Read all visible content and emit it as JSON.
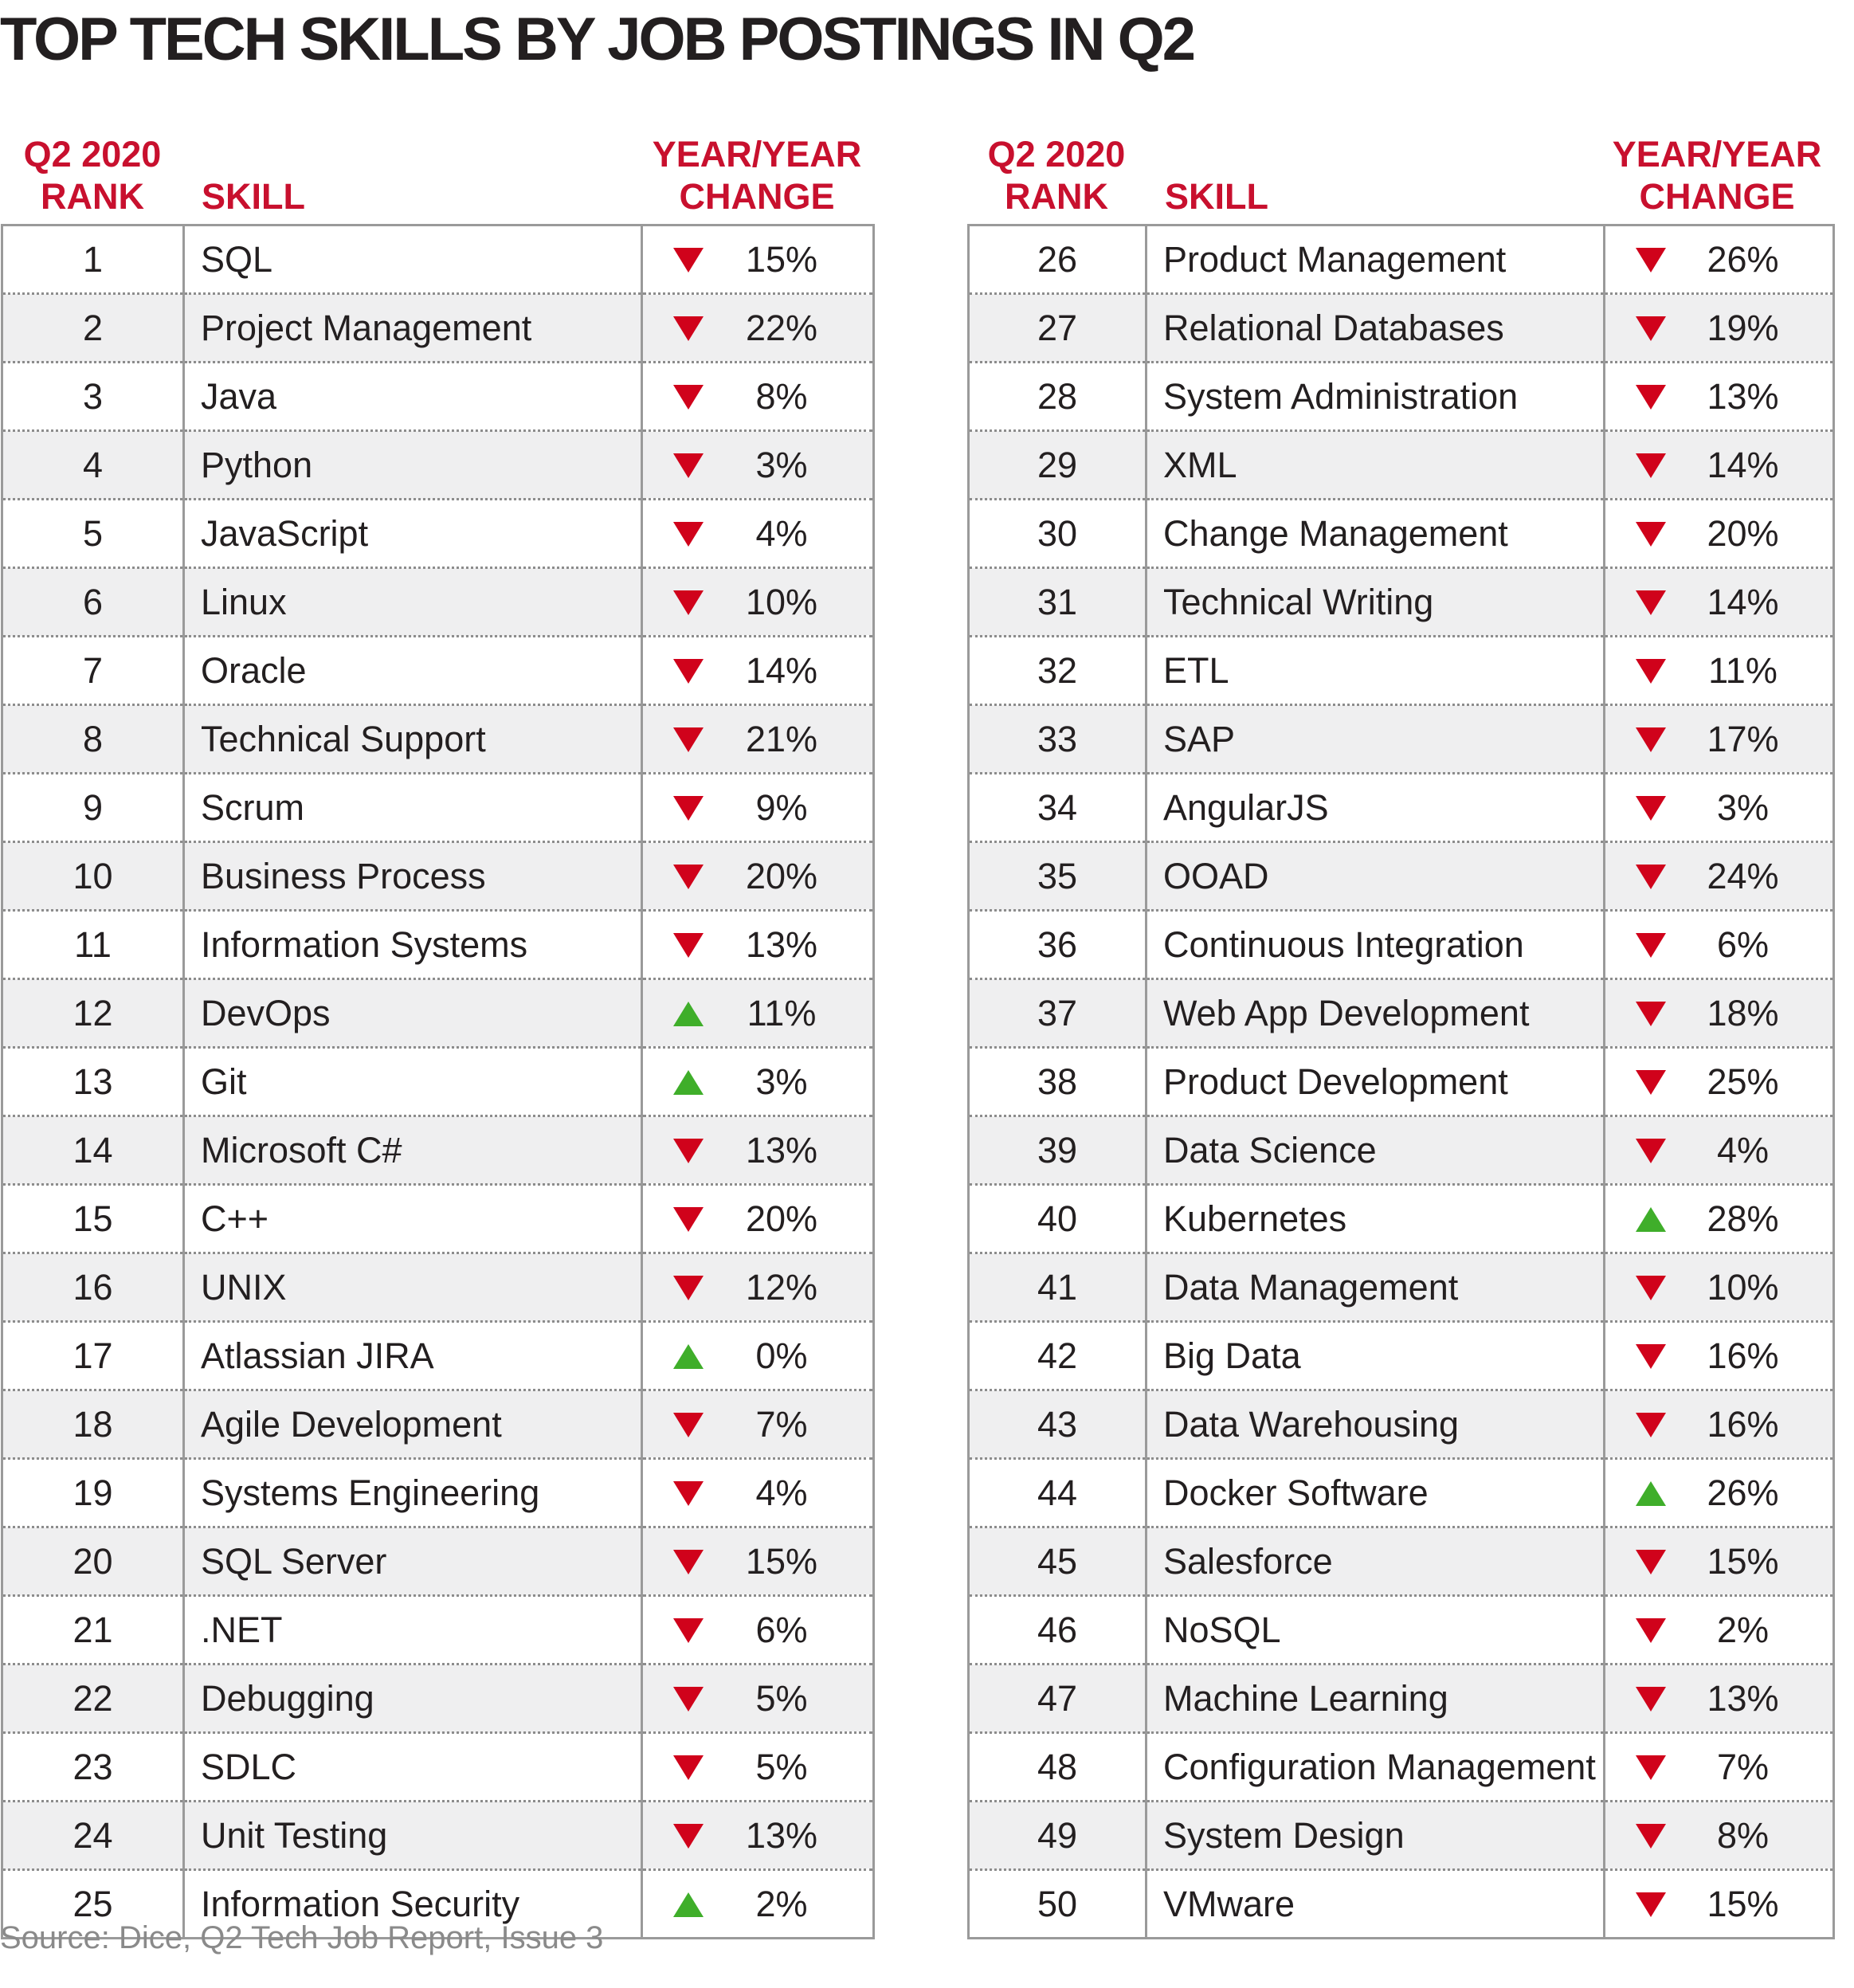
{
  "title": "TOP TECH SKILLS BY JOB POSTINGS IN Q2",
  "headers": {
    "rank_line1": "Q2 2020",
    "rank_line2": "RANK",
    "skill": "SKILL",
    "change_line1": "YEAR/YEAR",
    "change_line2": "CHANGE"
  },
  "source": "Source: Dice, Q2 Tech Job Report, Issue 3",
  "colors": {
    "accent_red": "#c8102e",
    "down_arrow": "#d0021b",
    "up_arrow": "#3fae2a",
    "zebra": "#efeff0"
  },
  "chart_data": {
    "type": "table",
    "columns": [
      "Q2 2020 RANK",
      "SKILL",
      "YEAR/YEAR CHANGE"
    ],
    "rows": [
      {
        "rank": "1",
        "skill": "SQL",
        "direction": "down",
        "change": "15%"
      },
      {
        "rank": "2",
        "skill": "Project Management",
        "direction": "down",
        "change": "22%"
      },
      {
        "rank": "3",
        "skill": "Java",
        "direction": "down",
        "change": "8%"
      },
      {
        "rank": "4",
        "skill": "Python",
        "direction": "down",
        "change": "3%"
      },
      {
        "rank": "5",
        "skill": "JavaScript",
        "direction": "down",
        "change": "4%"
      },
      {
        "rank": "6",
        "skill": "Linux",
        "direction": "down",
        "change": "10%"
      },
      {
        "rank": "7",
        "skill": "Oracle",
        "direction": "down",
        "change": "14%"
      },
      {
        "rank": "8",
        "skill": "Technical Support",
        "direction": "down",
        "change": "21%"
      },
      {
        "rank": "9",
        "skill": "Scrum",
        "direction": "down",
        "change": "9%"
      },
      {
        "rank": "10",
        "skill": "Business Process",
        "direction": "down",
        "change": "20%"
      },
      {
        "rank": "11",
        "skill": "Information Systems",
        "direction": "down",
        "change": "13%"
      },
      {
        "rank": "12",
        "skill": "DevOps",
        "direction": "up",
        "change": "11%"
      },
      {
        "rank": "13",
        "skill": "Git",
        "direction": "up",
        "change": "3%"
      },
      {
        "rank": "14",
        "skill": "Microsoft C#",
        "direction": "down",
        "change": "13%"
      },
      {
        "rank": "15",
        "skill": "C++",
        "direction": "down",
        "change": "20%"
      },
      {
        "rank": "16",
        "skill": "UNIX",
        "direction": "down",
        "change": "12%"
      },
      {
        "rank": "17",
        "skill": "Atlassian JIRA",
        "direction": "up",
        "change": "0%"
      },
      {
        "rank": "18",
        "skill": "Agile Development",
        "direction": "down",
        "change": "7%"
      },
      {
        "rank": "19",
        "skill": "Systems Engineering",
        "direction": "down",
        "change": "4%"
      },
      {
        "rank": "20",
        "skill": "SQL Server",
        "direction": "down",
        "change": "15%"
      },
      {
        "rank": "21",
        "skill": ".NET",
        "direction": "down",
        "change": "6%"
      },
      {
        "rank": "22",
        "skill": "Debugging",
        "direction": "down",
        "change": "5%"
      },
      {
        "rank": "23",
        "skill": "SDLC",
        "direction": "down",
        "change": "5%"
      },
      {
        "rank": "24",
        "skill": "Unit Testing",
        "direction": "down",
        "change": "13%"
      },
      {
        "rank": "25",
        "skill": "Information Security",
        "direction": "up",
        "change": "2%"
      },
      {
        "rank": "26",
        "skill": "Product Management",
        "direction": "down",
        "change": "26%"
      },
      {
        "rank": "27",
        "skill": "Relational Databases",
        "direction": "down",
        "change": "19%"
      },
      {
        "rank": "28",
        "skill": "System Administration",
        "direction": "down",
        "change": "13%"
      },
      {
        "rank": "29",
        "skill": "XML",
        "direction": "down",
        "change": "14%"
      },
      {
        "rank": "30",
        "skill": "Change Management",
        "direction": "down",
        "change": "20%"
      },
      {
        "rank": "31",
        "skill": "Technical Writing",
        "direction": "down",
        "change": "14%"
      },
      {
        "rank": "32",
        "skill": "ETL",
        "direction": "down",
        "change": "11%"
      },
      {
        "rank": "33",
        "skill": "SAP",
        "direction": "down",
        "change": "17%"
      },
      {
        "rank": "34",
        "skill": "AngularJS",
        "direction": "down",
        "change": "3%"
      },
      {
        "rank": "35",
        "skill": "OOAD",
        "direction": "down",
        "change": "24%"
      },
      {
        "rank": "36",
        "skill": "Continuous Integration",
        "direction": "down",
        "change": "6%"
      },
      {
        "rank": "37",
        "skill": "Web App Development",
        "direction": "down",
        "change": "18%"
      },
      {
        "rank": "38",
        "skill": "Product Development",
        "direction": "down",
        "change": "25%"
      },
      {
        "rank": "39",
        "skill": "Data Science",
        "direction": "down",
        "change": "4%"
      },
      {
        "rank": "40",
        "skill": "Kubernetes",
        "direction": "up",
        "change": "28%"
      },
      {
        "rank": "41",
        "skill": "Data Management",
        "direction": "down",
        "change": "10%"
      },
      {
        "rank": "42",
        "skill": "Big Data",
        "direction": "down",
        "change": "16%"
      },
      {
        "rank": "43",
        "skill": "Data Warehousing",
        "direction": "down",
        "change": "16%"
      },
      {
        "rank": "44",
        "skill": "Docker Software",
        "direction": "up",
        "change": "26%"
      },
      {
        "rank": "45",
        "skill": "Salesforce",
        "direction": "down",
        "change": "15%"
      },
      {
        "rank": "46",
        "skill": "NoSQL",
        "direction": "down",
        "change": "2%"
      },
      {
        "rank": "47",
        "skill": "Machine Learning",
        "direction": "down",
        "change": "13%"
      },
      {
        "rank": "48",
        "skill": "Configuration Management",
        "direction": "down",
        "change": "7%"
      },
      {
        "rank": "49",
        "skill": "System Design",
        "direction": "down",
        "change": "8%"
      },
      {
        "rank": "50",
        "skill": "VMware",
        "direction": "down",
        "change": "15%"
      }
    ]
  }
}
